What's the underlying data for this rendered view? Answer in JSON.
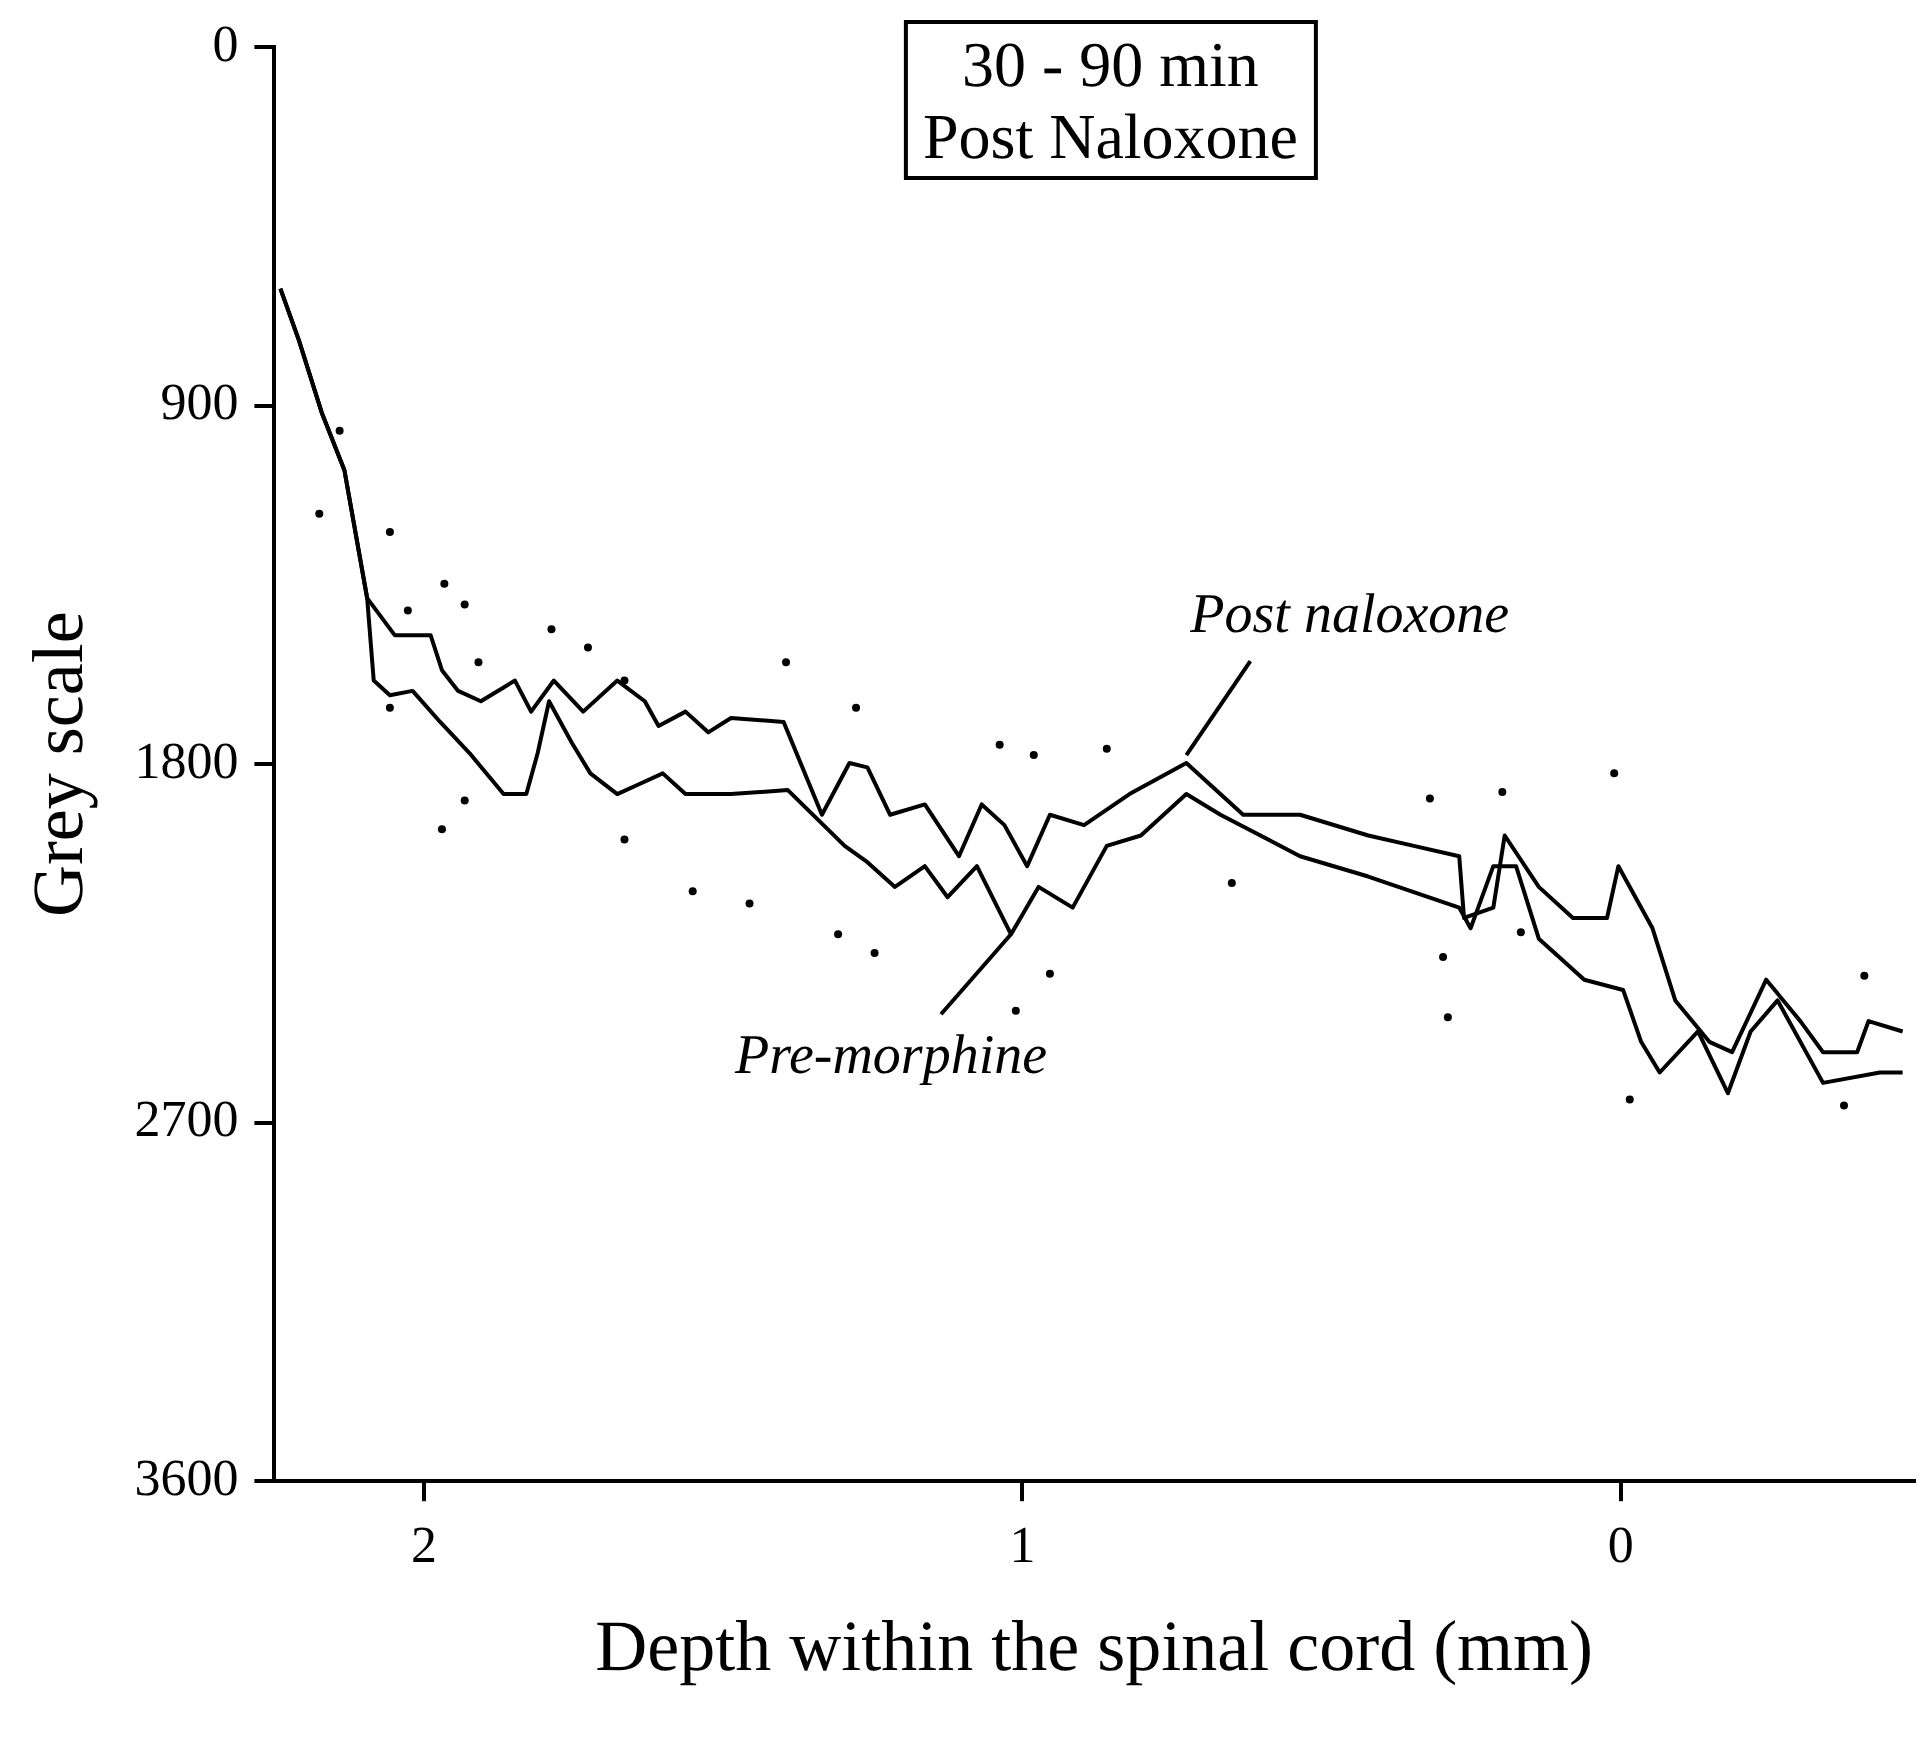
{
  "chart_data": {
    "type": "line",
    "title": "30 - 90 min",
    "subtitle": "Post Naloxone",
    "xlabel": "Depth within the spinal cord (mm)",
    "ylabel": "Grey scale",
    "xlim": [
      2.25,
      -0.49
    ],
    "xticks": [
      2,
      1,
      0
    ],
    "ylim": [
      3600,
      0
    ],
    "yticks": [
      0,
      900,
      1800,
      2700,
      3600
    ],
    "grid": false,
    "legend": false,
    "line_style": "solid",
    "annotations": [
      {
        "text": "Post naloxone",
        "x": 0.726,
        "y": 1777
      },
      {
        "text": "Pre-morphine",
        "x": 1.019,
        "y": 2227
      }
    ],
    "series": [
      {
        "color": "#000000",
        "x": [
          2.24,
          2.209,
          2.171,
          2.133,
          2.095,
          2.049,
          1.989,
          1.97,
          1.943,
          1.905,
          1.848,
          1.821,
          1.783,
          1.734,
          1.677,
          1.631,
          1.608,
          1.563,
          1.525,
          1.487,
          1.399,
          1.335,
          1.289,
          1.259,
          1.221,
          1.163,
          1.106,
          1.068,
          1.03,
          0.992,
          0.954,
          0.897,
          0.821,
          0.726,
          0.688,
          0.631,
          0.536,
          0.422,
          0.346,
          0.27,
          0.262,
          0.213,
          0.194,
          0.137,
          0.08,
          0.023,
          0.004,
          -0.053,
          -0.091,
          -0.148,
          -0.186,
          -0.243,
          -0.3,
          -0.338,
          -0.395,
          -0.414,
          -0.471
        ],
        "values": [
          606,
          736,
          917,
          1062,
          1383,
          1476,
          1476,
          1564,
          1616,
          1642,
          1590,
          1668,
          1590,
          1668,
          1590,
          1642,
          1704,
          1668,
          1720,
          1684,
          1694,
          1927,
          1797,
          1808,
          1927,
          1901,
          2031,
          1901,
          1953,
          2056,
          1927,
          1953,
          1875,
          1797,
          1849,
          1927,
          1927,
          1979,
          2005,
          2031,
          2186,
          2160,
          1979,
          2108,
          2186,
          2186,
          2056,
          2212,
          2393,
          2497,
          2523,
          2341,
          2445,
          2523,
          2523,
          2445,
          2471
        ]
      },
      {
        "color": "#000000",
        "x": [
          2.24,
          2.209,
          2.171,
          2.133,
          2.095,
          2.084,
          2.057,
          2.019,
          1.973,
          1.924,
          1.867,
          1.829,
          1.81,
          1.791,
          1.753,
          1.722,
          1.677,
          1.639,
          1.601,
          1.563,
          1.487,
          1.392,
          1.297,
          1.259,
          1.213,
          1.163,
          1.125,
          1.076,
          1.019,
          0.973,
          0.916,
          0.859,
          0.802,
          0.726,
          0.669,
          0.536,
          0.422,
          0.27,
          0.251,
          0.213,
          0.175,
          0.137,
          0.061,
          -0.004,
          -0.034,
          -0.065,
          -0.129,
          -0.179,
          -0.217,
          -0.262,
          -0.338,
          -0.433,
          -0.471
        ],
        "values": [
          606,
          736,
          917,
          1062,
          1383,
          1590,
          1627,
          1616,
          1694,
          1772,
          1875,
          1875,
          1772,
          1642,
          1746,
          1823,
          1875,
          1849,
          1823,
          1875,
          1875,
          1865,
          2005,
          2046,
          2108,
          2056,
          2134,
          2056,
          2227,
          2108,
          2160,
          2005,
          1979,
          1875,
          1927,
          2031,
          2082,
          2160,
          2212,
          2056,
          2056,
          2238,
          2341,
          2367,
          2497,
          2574,
          2471,
          2626,
          2471,
          2393,
          2600,
          2574,
          2574
        ]
      },
      {
        "type": "scatter",
        "color": "#000000",
        "x": [
          2.141,
          2.175,
          2.057,
          1.966,
          1.932,
          2.027,
          1.787,
          1.726,
          1.909,
          1.665,
          1.395,
          2.057,
          1.932,
          1.97,
          1.665,
          1.551,
          1.456,
          1.278,
          1.038,
          0.981,
          0.859,
          1.308,
          1.247,
          1.011,
          0.954,
          0.65,
          0.011,
          0.319,
          0.198,
          0.297,
          0.289,
          -0.015,
          -0.373,
          -0.407,
          0.167
        ],
        "values": [
          963,
          1171,
          1217,
          1347,
          1399,
          1414,
          1461,
          1507,
          1544,
          1590,
          1544,
          1658,
          1891,
          1963,
          1989,
          2119,
          2150,
          1658,
          1751,
          1777,
          1761,
          2227,
          2274,
          2419,
          2326,
          2098,
          1823,
          1886,
          1870,
          2284,
          2435,
          2642,
          2657,
          2331,
          2222
        ]
      }
    ]
  }
}
